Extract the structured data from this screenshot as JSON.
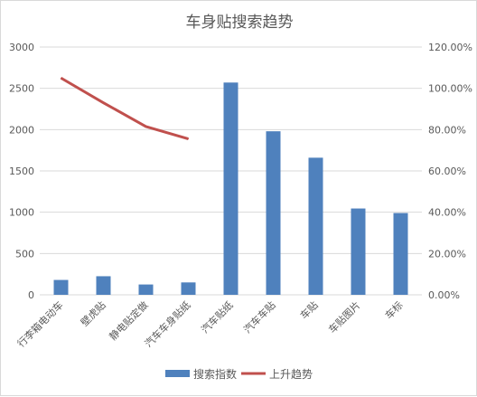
{
  "chart_data": {
    "type": "bar",
    "title": "车身贴搜索趋势",
    "categories": [
      "行李箱电动车",
      "壁虎贴",
      "静电贴定做",
      "汽车车身贴纸",
      "汽车贴纸",
      "汽车车贴",
      "车贴",
      "车贴图片",
      "车标"
    ],
    "series": [
      {
        "name": "搜索指数",
        "type": "bar",
        "axis": "left",
        "color": "#4f81bd",
        "values": [
          180,
          225,
          125,
          150,
          2570,
          1980,
          1660,
          1045,
          990
        ]
      },
      {
        "name": "上升趋势",
        "type": "line",
        "axis": "right",
        "color": "#c0504d",
        "values": [
          1.05,
          0.93,
          0.815,
          0.755,
          null,
          null,
          null,
          null,
          null
        ]
      }
    ],
    "y_left": {
      "min": 0,
      "max": 3000,
      "ticks": [
        "0",
        "500",
        "1000",
        "1500",
        "2000",
        "2500",
        "3000"
      ]
    },
    "y_right": {
      "min": 0,
      "max": 1.2,
      "ticks": [
        "0.00%",
        "20.00%",
        "40.00%",
        "60.00%",
        "80.00%",
        "100.00%",
        "120.00%"
      ]
    },
    "grid": true,
    "legend_position": "bottom"
  }
}
